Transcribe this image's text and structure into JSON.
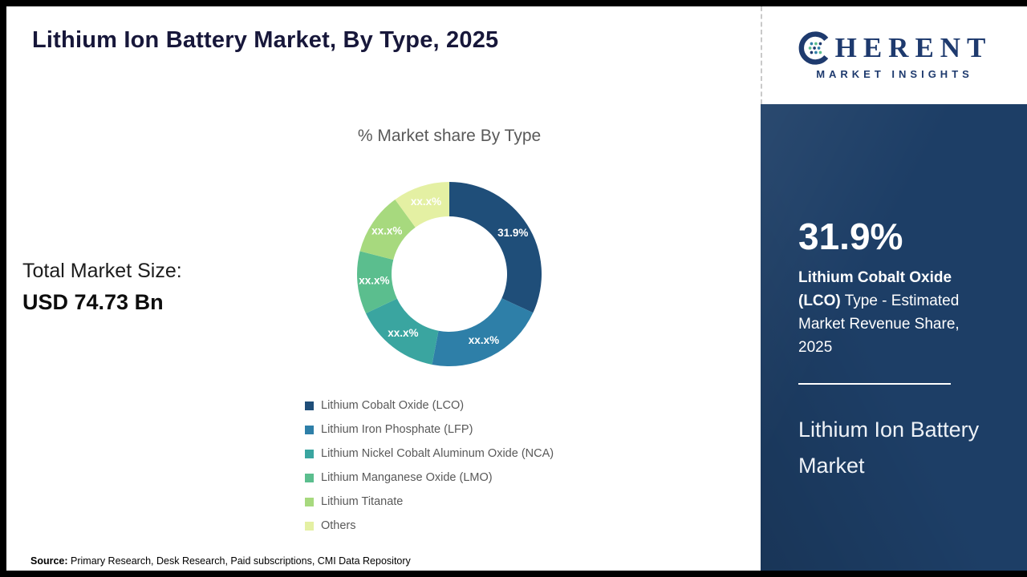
{
  "header": {
    "title": "Lithium Ion Battery Market, By Type, 2025"
  },
  "logo": {
    "wordmark_rest": "HERENT",
    "tagline": "MARKET INSIGHTS"
  },
  "left_stats": {
    "label": "Total Market Size:",
    "value": "USD 74.73 Bn"
  },
  "chart_data": {
    "type": "pie",
    "variant": "donut",
    "title": "% Market share By Type",
    "legend_position": "bottom",
    "slices": [
      {
        "name": "Lithium Cobalt Oxide (LCO)",
        "value": 31.9,
        "label": "31.9%",
        "color": "#1F4E79"
      },
      {
        "name": "Lithium Iron Phosphate (LFP)",
        "value": 21.1,
        "label": "xx.x%",
        "color": "#2E7FA8"
      },
      {
        "name": "Lithium Nickel Cobalt Aluminum Oxide (NCA)",
        "value": 15.0,
        "label": "xx.x%",
        "color": "#3AA5A0"
      },
      {
        "name": "Lithium Manganese Oxide (LMO)",
        "value": 11.0,
        "label": "xx.x%",
        "color": "#5BBE8E"
      },
      {
        "name": "Lithium Titanate",
        "value": 11.0,
        "label": "xx.x%",
        "color": "#A7D97E"
      },
      {
        "name": "Others",
        "value": 10.0,
        "label": "xx.x%",
        "color": "#E4F0A3"
      }
    ]
  },
  "side_panel": {
    "stat": "31.9%",
    "desc_bold": "Lithium Cobalt Oxide (LCO)",
    "desc_rest": " Type - Estimated Market Revenue Share, 2025",
    "market": "Lithium Ion Battery Market"
  },
  "footer": {
    "source_label": "Source:",
    "source_text": " Primary Research, Desk Research, Paid subscriptions, CMI Data Repository"
  },
  "colors": {
    "panel_background": "#1d3e66",
    "brand_navy": "#1e3a6e"
  }
}
